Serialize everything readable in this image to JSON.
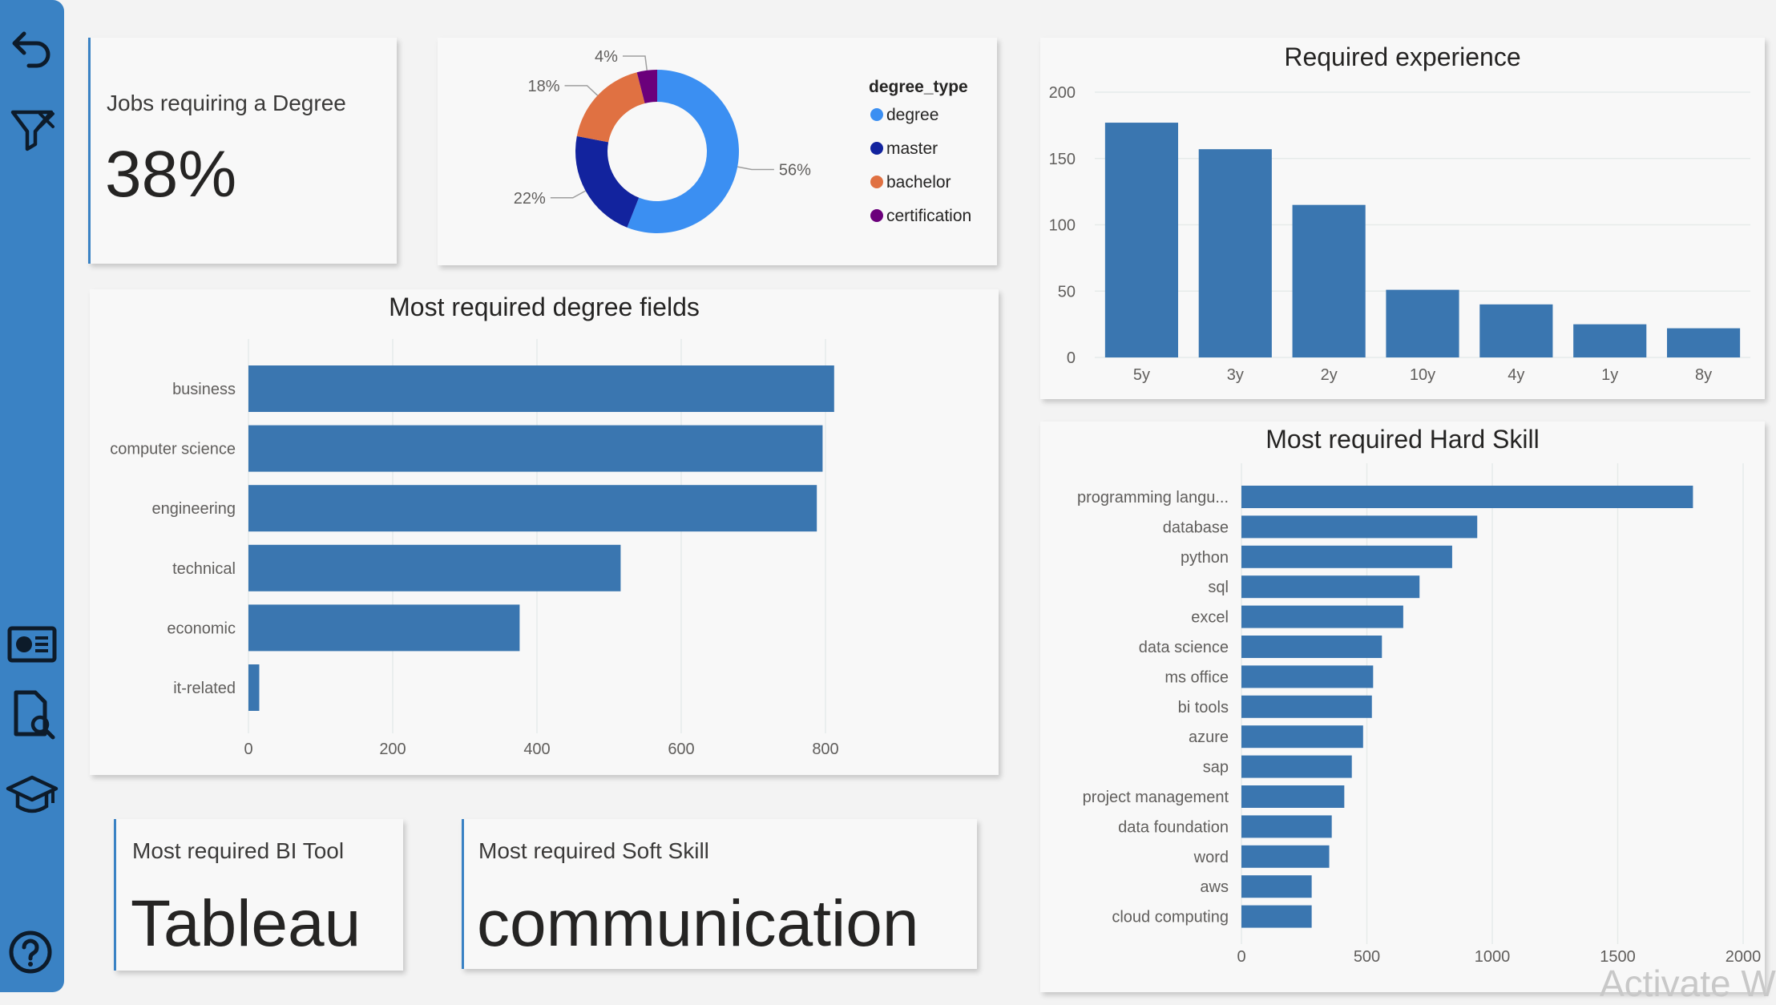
{
  "sidebar": {
    "icons": [
      "back-arrow-icon",
      "filter-icon",
      "id-card-icon",
      "document-search-icon",
      "graduation-cap-icon",
      "help-icon"
    ]
  },
  "kpi_degree": {
    "title": "Jobs requiring a Degree",
    "value": "38%"
  },
  "kpi_bi_tool": {
    "title": "Most required BI Tool",
    "value": "Tableau"
  },
  "kpi_soft_skill": {
    "title": "Most required Soft Skill",
    "value": "communication"
  },
  "watermark": "Activate Wi",
  "chart_data": [
    {
      "id": "degree-type-donut",
      "type": "pie",
      "title": "",
      "legend_title": "degree_type",
      "legend_position": "right",
      "categories": [
        "degree",
        "master",
        "bachelor",
        "certification"
      ],
      "values": [
        56,
        22,
        18,
        4
      ],
      "labels": [
        "56%",
        "22%",
        "18%",
        "4%"
      ],
      "colors": [
        "#3b8ff2",
        "#12239e",
        "#e07142",
        "#6b007b"
      ]
    },
    {
      "id": "required-experience",
      "type": "bar",
      "title": "Required experience",
      "categories": [
        "5y",
        "3y",
        "2y",
        "10y",
        "4y",
        "1y",
        "8y"
      ],
      "values": [
        177,
        157,
        115,
        51,
        40,
        25,
        22
      ],
      "yticks": [
        "0",
        "50",
        "100",
        "150",
        "200"
      ],
      "ylim": [
        0,
        200
      ],
      "color": "#3a76b0"
    },
    {
      "id": "degree-fields",
      "type": "bar",
      "orientation": "horizontal",
      "title": "Most required degree fields",
      "categories": [
        "business",
        "computer science",
        "engineering",
        "technical",
        "economic",
        "it-related"
      ],
      "values": [
        812,
        796,
        788,
        516,
        376,
        15
      ],
      "xticks": [
        "0",
        "200",
        "400",
        "600",
        "800"
      ],
      "xlim": [
        0,
        900
      ],
      "color": "#3a76b0"
    },
    {
      "id": "hard-skills",
      "type": "bar",
      "orientation": "horizontal",
      "title": "Most required Hard Skill",
      "categories": [
        "programming langu...",
        "database",
        "python",
        "sql",
        "excel",
        "data science",
        "ms office",
        "bi tools",
        "azure",
        "sap",
        "project management",
        "data foundation",
        "word",
        "aws",
        "cloud computing"
      ],
      "values": [
        1800,
        940,
        840,
        710,
        645,
        560,
        525,
        520,
        485,
        440,
        410,
        360,
        350,
        280,
        280
      ],
      "xticks": [
        "0",
        "500",
        "1000",
        "1500",
        "2000"
      ],
      "xlim": [
        0,
        2000
      ],
      "color": "#3a76b0"
    }
  ]
}
